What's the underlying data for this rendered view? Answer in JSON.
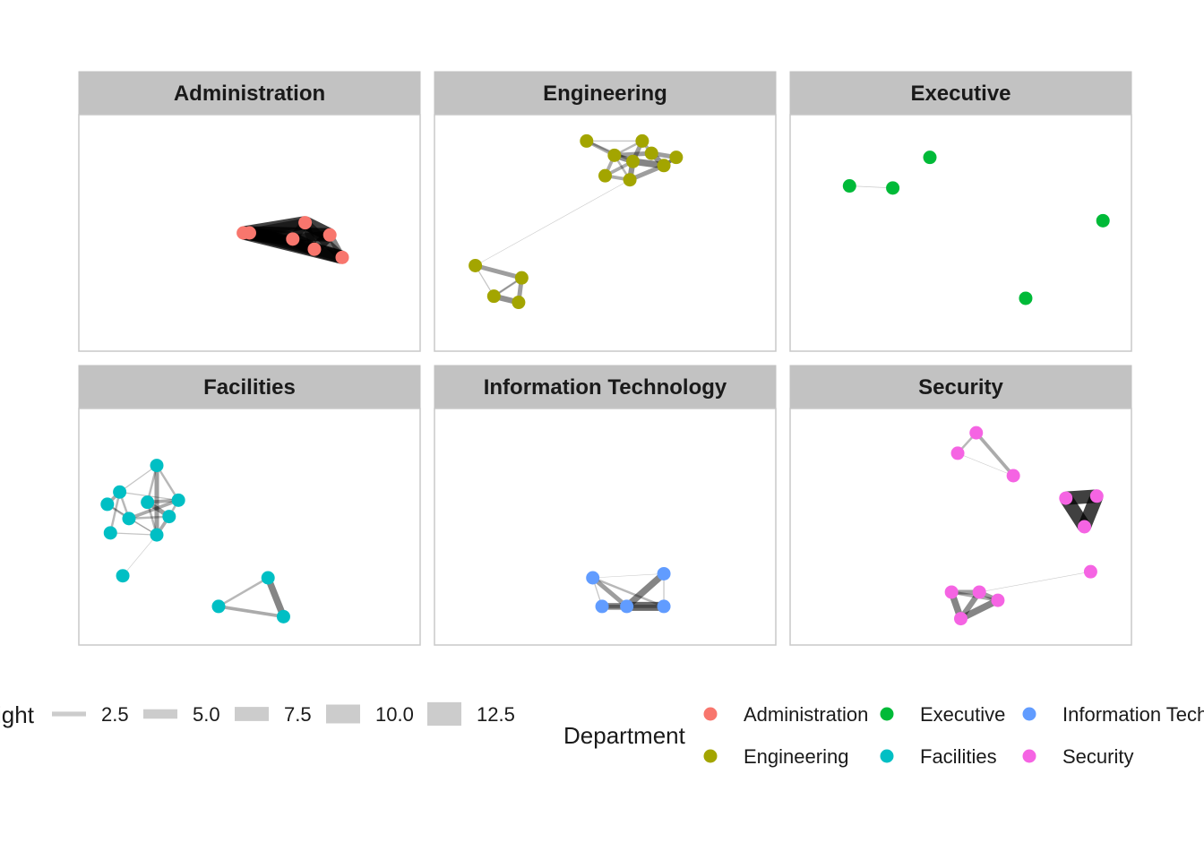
{
  "chart_data": {
    "type": "network-facets",
    "node_color_by": "Department",
    "edge_width_by": "weight",
    "panels": [
      {
        "name": "Administration",
        "color": "#F8766D",
        "nodes": [
          [
            0.48,
            0.5
          ],
          [
            0.5,
            0.5
          ],
          [
            0.68,
            0.45
          ],
          [
            0.64,
            0.53
          ],
          [
            0.76,
            0.51
          ],
          [
            0.71,
            0.58
          ],
          [
            0.8,
            0.62
          ]
        ],
        "edges": [
          [
            0,
            2,
            12
          ],
          [
            0,
            3,
            12
          ],
          [
            1,
            4,
            12
          ],
          [
            1,
            5,
            12
          ],
          [
            0,
            6,
            12
          ],
          [
            2,
            3,
            8
          ],
          [
            2,
            4,
            12
          ],
          [
            2,
            5,
            7
          ],
          [
            3,
            4,
            8
          ],
          [
            3,
            5,
            12
          ],
          [
            4,
            5,
            10
          ],
          [
            4,
            6,
            6
          ],
          [
            5,
            6,
            12
          ],
          [
            2,
            6,
            8
          ],
          [
            1,
            2,
            8
          ],
          [
            1,
            3,
            6
          ],
          [
            1,
            6,
            8
          ]
        ]
      },
      {
        "name": "Engineering",
        "color": "#A3A500",
        "nodes": [
          [
            0.44,
            0.05
          ],
          [
            0.62,
            0.05
          ],
          [
            0.53,
            0.12
          ],
          [
            0.65,
            0.11
          ],
          [
            0.73,
            0.13
          ],
          [
            0.59,
            0.15
          ],
          [
            0.69,
            0.17
          ],
          [
            0.5,
            0.22
          ],
          [
            0.58,
            0.24
          ],
          [
            0.08,
            0.66
          ],
          [
            0.23,
            0.72
          ],
          [
            0.14,
            0.81
          ],
          [
            0.22,
            0.84
          ]
        ],
        "edges": [
          [
            0,
            2,
            3
          ],
          [
            0,
            5,
            2
          ],
          [
            1,
            3,
            3
          ],
          [
            1,
            5,
            4
          ],
          [
            2,
            5,
            5
          ],
          [
            2,
            7,
            3
          ],
          [
            3,
            4,
            4
          ],
          [
            3,
            6,
            5
          ],
          [
            5,
            6,
            6
          ],
          [
            5,
            8,
            5
          ],
          [
            6,
            8,
            4
          ],
          [
            7,
            8,
            3
          ],
          [
            2,
            3,
            4
          ],
          [
            4,
            6,
            3
          ],
          [
            1,
            2,
            2
          ],
          [
            0,
            1,
            1
          ],
          [
            5,
            7,
            3
          ],
          [
            6,
            4,
            3
          ],
          [
            8,
            2,
            2
          ],
          [
            8,
            9,
            0.5
          ],
          [
            9,
            10,
            4
          ],
          [
            10,
            11,
            1
          ],
          [
            10,
            12,
            4
          ],
          [
            11,
            12,
            5
          ],
          [
            9,
            11,
            1
          ],
          [
            11,
            10,
            2
          ]
        ]
      },
      {
        "name": "Executive",
        "color": "#00BA38",
        "nodes": [
          [
            0.14,
            0.27
          ],
          [
            0.28,
            0.28
          ],
          [
            0.4,
            0.13
          ],
          [
            0.96,
            0.44
          ],
          [
            0.71,
            0.82
          ]
        ],
        "edges": [
          [
            0,
            1,
            0.6
          ]
        ]
      },
      {
        "name": "Facilities",
        "color": "#00BFC4",
        "nodes": [
          [
            0.2,
            0.2
          ],
          [
            0.08,
            0.33
          ],
          [
            0.04,
            0.39
          ],
          [
            0.17,
            0.38
          ],
          [
            0.27,
            0.37
          ],
          [
            0.11,
            0.46
          ],
          [
            0.24,
            0.45
          ],
          [
            0.05,
            0.53
          ],
          [
            0.2,
            0.54
          ],
          [
            0.09,
            0.74
          ],
          [
            0.56,
            0.75
          ],
          [
            0.4,
            0.89
          ],
          [
            0.61,
            0.94
          ]
        ],
        "edges": [
          [
            0,
            1,
            1
          ],
          [
            0,
            4,
            2
          ],
          [
            0,
            8,
            4
          ],
          [
            0,
            3,
            2
          ],
          [
            1,
            2,
            3
          ],
          [
            1,
            5,
            2
          ],
          [
            1,
            7,
            2
          ],
          [
            1,
            4,
            1
          ],
          [
            2,
            5,
            2
          ],
          [
            3,
            4,
            3
          ],
          [
            3,
            6,
            4
          ],
          [
            3,
            8,
            2
          ],
          [
            4,
            6,
            2
          ],
          [
            4,
            5,
            3
          ],
          [
            5,
            6,
            2
          ],
          [
            5,
            8,
            1
          ],
          [
            6,
            8,
            3
          ],
          [
            7,
            8,
            1
          ],
          [
            8,
            9,
            0.5
          ],
          [
            2,
            8,
            1
          ],
          [
            10,
            11,
            2
          ],
          [
            10,
            12,
            6
          ],
          [
            11,
            12,
            3
          ]
        ]
      },
      {
        "name": "Information Technology",
        "color": "#619CFF",
        "nodes": [
          [
            0.46,
            0.75
          ],
          [
            0.69,
            0.73
          ],
          [
            0.49,
            0.89
          ],
          [
            0.57,
            0.89
          ],
          [
            0.69,
            0.89
          ]
        ],
        "edges": [
          [
            0,
            1,
            0.5
          ],
          [
            0,
            2,
            1
          ],
          [
            0,
            3,
            4
          ],
          [
            1,
            3,
            6
          ],
          [
            2,
            3,
            6
          ],
          [
            3,
            4,
            8
          ],
          [
            2,
            4,
            3
          ],
          [
            1,
            4,
            1
          ],
          [
            0,
            4,
            2
          ]
        ]
      },
      {
        "name": "Security",
        "color": "#F564E3",
        "nodes": [
          [
            0.55,
            0.04
          ],
          [
            0.49,
            0.14
          ],
          [
            0.67,
            0.25
          ],
          [
            0.84,
            0.36
          ],
          [
            0.94,
            0.35
          ],
          [
            0.9,
            0.5
          ],
          [
            0.92,
            0.72
          ],
          [
            0.47,
            0.82
          ],
          [
            0.56,
            0.82
          ],
          [
            0.62,
            0.86
          ],
          [
            0.5,
            0.95
          ]
        ],
        "edges": [
          [
            0,
            1,
            2
          ],
          [
            0,
            2,
            3
          ],
          [
            1,
            2,
            0.5
          ],
          [
            3,
            4,
            12
          ],
          [
            3,
            5,
            12
          ],
          [
            4,
            5,
            12
          ],
          [
            7,
            8,
            4
          ],
          [
            7,
            10,
            6
          ],
          [
            8,
            9,
            4
          ],
          [
            8,
            10,
            5
          ],
          [
            9,
            10,
            6
          ],
          [
            7,
            9,
            3
          ],
          [
            6,
            8,
            0.5
          ]
        ]
      }
    ],
    "legend": {
      "weight": {
        "title": "weight",
        "title_visible": "ight",
        "keys": [
          {
            "value": 2.5,
            "label": "2.5"
          },
          {
            "value": 5.0,
            "label": "5.0"
          },
          {
            "value": 7.5,
            "label": "7.5"
          },
          {
            "value": 10.0,
            "label": "10.0"
          },
          {
            "value": 12.5,
            "label": "12.5"
          }
        ]
      },
      "department": {
        "title": "Department",
        "entries": [
          {
            "label": "Administration",
            "color": "#F8766D"
          },
          {
            "label": "Engineering",
            "color": "#A3A500"
          },
          {
            "label": "Executive",
            "color": "#00BA38"
          },
          {
            "label": "Facilities",
            "color": "#00BFC4"
          },
          {
            "label": "Information Technology",
            "color": "#619CFF"
          },
          {
            "label": "Security",
            "color": "#F564E3"
          }
        ]
      }
    }
  }
}
